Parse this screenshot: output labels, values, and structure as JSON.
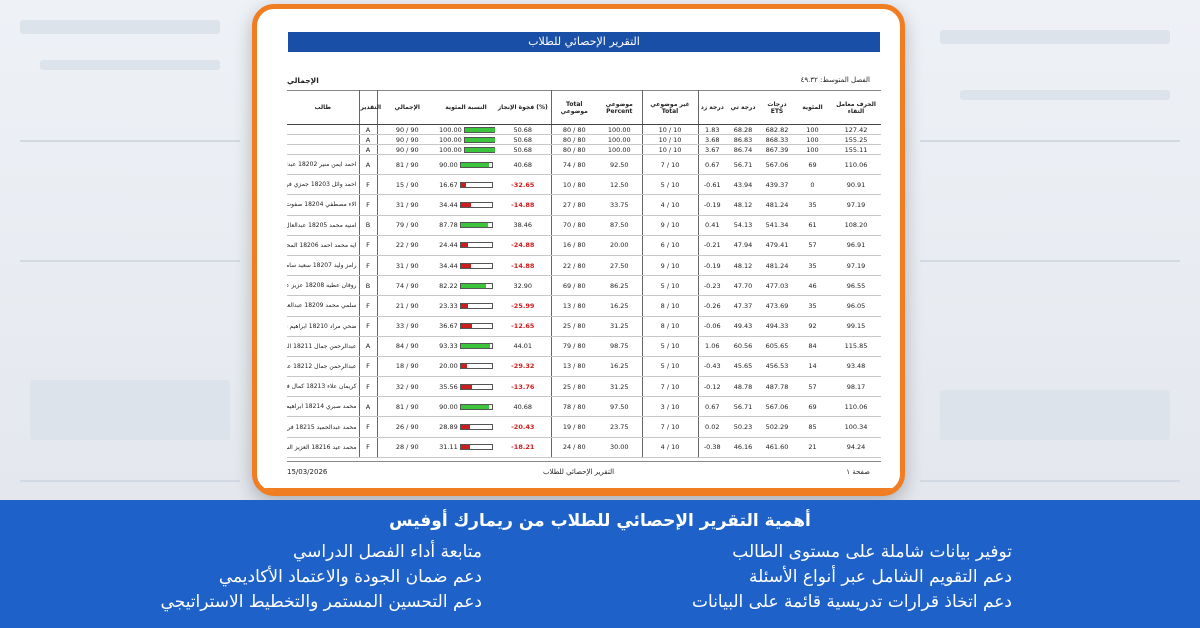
{
  "report": {
    "title": "التقرير الإحصائي للطلاب",
    "semester_label": "الفصل المتوسط: ٤٩.٣٢",
    "total_label": "الإجمالي",
    "columns": [
      "الحرف معامل التقاء",
      "المئوية",
      "درجات ETS",
      "درجة تي",
      "درجة زد",
      "غير موضوعي Total",
      "موضوعي Percent",
      "Total موضوعي",
      "فجوة الإنجاز (%)",
      "النسبة المئوية",
      "الإجمالي",
      "التقدير",
      "طالب"
    ],
    "rows": [
      {
        "r": "127.42",
        "pct": "100",
        "ets": "682.82",
        "t": "68.28",
        "z": "1.83",
        "nobj": "10 / 10",
        "objp": "100.00",
        "obj": "80 / 80",
        "gap": "50.68",
        "perc": "100.00",
        "fill": 1.0,
        "total": "90 / 90",
        "grade": "A",
        "name": "",
        "short": true
      },
      {
        "r": "155.25",
        "pct": "100",
        "ets": "868.33",
        "t": "86.83",
        "z": "3.68",
        "nobj": "10 / 10",
        "objp": "100.00",
        "obj": "80 / 80",
        "gap": "50.68",
        "perc": "100.00",
        "fill": 1.0,
        "total": "90 / 90",
        "grade": "A",
        "name": "",
        "short": true
      },
      {
        "r": "155.11",
        "pct": "100",
        "ets": "867.39",
        "t": "86.74",
        "z": "3.67",
        "nobj": "10 / 10",
        "objp": "100.00",
        "obj": "80 / 80",
        "gap": "50.68",
        "perc": "100.00",
        "fill": 1.0,
        "total": "90 / 90",
        "grade": "A",
        "name": "",
        "short": true
      },
      {
        "r": "110.06",
        "pct": "69",
        "ets": "567.06",
        "t": "56.71",
        "z": "0.67",
        "nobj": "7 / 10",
        "objp": "92.50",
        "obj": "74 / 80",
        "gap": "40.68",
        "perc": "90.00",
        "fill": 0.9,
        "total": "81 / 90",
        "grade": "A",
        "name": "احمد ايمن منير 18202 عبدالله"
      },
      {
        "r": "90.91",
        "pct": "0",
        "ets": "439.37",
        "t": "43.94",
        "z": "-0.61",
        "nobj": "5 / 10",
        "objp": "12.50",
        "obj": "10 / 80",
        "gap": "-32.65",
        "perc": "16.67",
        "fill": 0.17,
        "total": "15 / 90",
        "grade": "F",
        "name": "احمد وائل 18203 جمزي فرج الباب"
      },
      {
        "r": "97.19",
        "pct": "35",
        "ets": "481.24",
        "t": "48.12",
        "z": "-0.19",
        "nobj": "4 / 10",
        "objp": "33.75",
        "obj": "27 / 80",
        "gap": "-14.88",
        "perc": "34.44",
        "fill": 0.34,
        "total": "31 / 90",
        "grade": "F",
        "name": "الاء مصطفي 18204 صفوت محمود"
      },
      {
        "r": "108.20",
        "pct": "61",
        "ets": "541.34",
        "t": "54.13",
        "z": "0.41",
        "nobj": "9 / 10",
        "objp": "87.50",
        "obj": "70 / 80",
        "gap": "38.46",
        "perc": "87.78",
        "fill": 0.88,
        "total": "79 / 90",
        "grade": "B",
        "name": "امنيه محمد 18205 عبدالعال"
      },
      {
        "r": "96.91",
        "pct": "57",
        "ets": "479.41",
        "t": "47.94",
        "z": "-0.21",
        "nobj": "6 / 10",
        "objp": "20.00",
        "obj": "16 / 80",
        "gap": "-24.88",
        "perc": "24.44",
        "fill": 0.24,
        "total": "22 / 90",
        "grade": "F",
        "name": "ايه محمد احمد 18206 المحمدي"
      },
      {
        "r": "97.19",
        "pct": "35",
        "ets": "481.24",
        "t": "48.12",
        "z": "-0.19",
        "nobj": "9 / 10",
        "objp": "27.50",
        "obj": "22 / 80",
        "gap": "-14.88",
        "perc": "34.44",
        "fill": 0.34,
        "total": "31 / 90",
        "grade": "F",
        "name": "رامز وليد 18207 سعيد سامي"
      },
      {
        "r": "96.55",
        "pct": "46",
        "ets": "477.03",
        "t": "47.70",
        "z": "-0.23",
        "nobj": "5 / 10",
        "objp": "86.25",
        "obj": "69 / 80",
        "gap": "32.90",
        "perc": "82.22",
        "fill": 0.82,
        "total": "74 / 90",
        "grade": "B",
        "name": "روفان عطيه 18208 عزيز عطائه"
      },
      {
        "r": "96.05",
        "pct": "35",
        "ets": "473.69",
        "t": "47.37",
        "z": "-0.26",
        "nobj": "8 / 10",
        "objp": "16.25",
        "obj": "13 / 80",
        "gap": "-25.99",
        "perc": "23.33",
        "fill": 0.23,
        "total": "21 / 90",
        "grade": "F",
        "name": "سلمي محمد 18209 عبدالعال سمير"
      },
      {
        "r": "99.15",
        "pct": "92",
        "ets": "494.33",
        "t": "49.43",
        "z": "-0.06",
        "nobj": "8 / 10",
        "objp": "31.25",
        "obj": "25 / 80",
        "gap": "-12.65",
        "perc": "36.67",
        "fill": 0.37,
        "total": "33 / 90",
        "grade": "F",
        "name": "ضحي مراد 18210 ابراهيم نصر"
      },
      {
        "r": "115.85",
        "pct": "84",
        "ets": "605.65",
        "t": "60.56",
        "z": "1.06",
        "nobj": "5 / 10",
        "objp": "98.75",
        "obj": "79 / 80",
        "gap": "44.01",
        "perc": "93.33",
        "fill": 0.93,
        "total": "84 / 90",
        "grade": "A",
        "name": "عبدالرحمن جمال 18211 الدين"
      },
      {
        "r": "93.48",
        "pct": "14",
        "ets": "456.53",
        "t": "45.65",
        "z": "-0.43",
        "nobj": "5 / 10",
        "objp": "16.25",
        "obj": "13 / 80",
        "gap": "-29.32",
        "perc": "20.00",
        "fill": 0.2,
        "total": "18 / 90",
        "grade": "F",
        "name": "عبدالرحمن جمال 18212 عوده"
      },
      {
        "r": "98.17",
        "pct": "57",
        "ets": "487.78",
        "t": "48.78",
        "z": "-0.12",
        "nobj": "7 / 10",
        "objp": "31.25",
        "obj": "25 / 80",
        "gap": "-13.76",
        "perc": "35.56",
        "fill": 0.36,
        "total": "32 / 90",
        "grade": "F",
        "name": "كريمان علاء 18213 كمال فرج"
      },
      {
        "r": "110.06",
        "pct": "69",
        "ets": "567.06",
        "t": "56.71",
        "z": "0.67",
        "nobj": "3 / 10",
        "objp": "97.50",
        "obj": "78 / 80",
        "gap": "40.68",
        "perc": "90.00",
        "fill": 0.9,
        "total": "81 / 90",
        "grade": "A",
        "name": "محمد صبري 18214 ابراهيم مرسي"
      },
      {
        "r": "100.34",
        "pct": "85",
        "ets": "502.29",
        "t": "50.23",
        "z": "0.02",
        "nobj": "7 / 10",
        "objp": "23.75",
        "obj": "19 / 80",
        "gap": "-20.43",
        "perc": "28.89",
        "fill": 0.29,
        "total": "26 / 90",
        "grade": "F",
        "name": "محمد عبدالحميد 18215 فرج السمار"
      },
      {
        "r": "94.24",
        "pct": "21",
        "ets": "461.60",
        "t": "46.16",
        "z": "-0.38",
        "nobj": "4 / 10",
        "objp": "30.00",
        "obj": "24 / 80",
        "gap": "-18.21",
        "perc": "31.11",
        "fill": 0.31,
        "total": "28 / 90",
        "grade": "F",
        "name": "محمد عيد 18216 العزيز السيد بدوي"
      }
    ],
    "footer": {
      "date": "15/03/2026",
      "center": "التقرير الإحصائي للطلاب",
      "page": "صفحة ١"
    }
  },
  "banner": {
    "title": "أهمية التقرير الإحصائي للطلاب من ريمارك أوفيس",
    "right_points": [
      "توفير بيانات شاملة على مستوى الطالب",
      "دعم التقويم الشامل عبر أنواع الأسئلة",
      "دعم اتخاذ قرارات تدريسية قائمة على البيانات"
    ],
    "left_points": [
      "متابعة أداء الفصل الدراسي",
      "دعم ضمان الجودة والاعتماد الأكاديمي",
      "دعم التحسين المستمر والتخطيط الاستراتيجي"
    ]
  },
  "colors": {
    "orange": "#f07d22",
    "blue": "#1e62c9",
    "title_blue": "#1a4fa8",
    "bar_green": "#3cc43c",
    "bar_red": "#c81f1f",
    "negative": "#d21c1c"
  }
}
